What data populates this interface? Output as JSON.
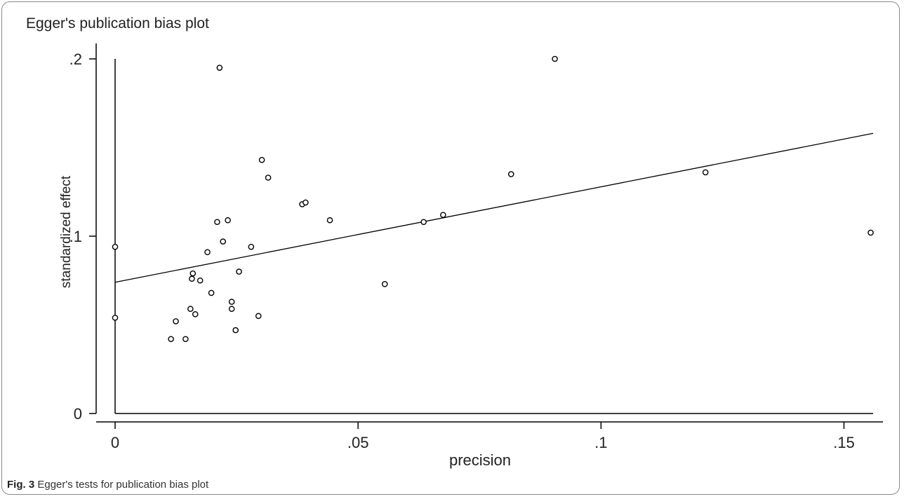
{
  "caption": {
    "label": "Fig. 3",
    "text": "Egger's tests for publication bias plot"
  },
  "chart_data": {
    "type": "scatter",
    "title": "Egger's publication bias plot",
    "xlabel": "precision",
    "ylabel": "standardized effect",
    "xlim": [
      0,
      0.156
    ],
    "ylim": [
      0,
      0.2
    ],
    "x_ticks": [
      0,
      0.05,
      0.1,
      0.15
    ],
    "x_tick_labels": [
      "0",
      ".05",
      ".1",
      ".15"
    ],
    "y_ticks": [
      0,
      0.1,
      0.2
    ],
    "y_tick_labels": [
      "0",
      ".1",
      ".2"
    ],
    "grid": false,
    "legend": "none",
    "series": [
      {
        "marker": "circle",
        "points": [
          [
            0,
            0.094
          ],
          [
            0,
            0.054
          ],
          [
            0.0115,
            0.042
          ],
          [
            0.0125,
            0.052
          ],
          [
            0.0145,
            0.042
          ],
          [
            0.0155,
            0.059
          ],
          [
            0.0158,
            0.076
          ],
          [
            0.016,
            0.079
          ],
          [
            0.0165,
            0.056
          ],
          [
            0.0175,
            0.075
          ],
          [
            0.019,
            0.091
          ],
          [
            0.0198,
            0.068
          ],
          [
            0.021,
            0.108
          ],
          [
            0.0215,
            0.195
          ],
          [
            0.0222,
            0.097
          ],
          [
            0.0232,
            0.109
          ],
          [
            0.024,
            0.063
          ],
          [
            0.024,
            0.059
          ],
          [
            0.0248,
            0.047
          ],
          [
            0.0255,
            0.08
          ],
          [
            0.028,
            0.094
          ],
          [
            0.0295,
            0.055
          ],
          [
            0.0302,
            0.143
          ],
          [
            0.0315,
            0.133
          ],
          [
            0.0385,
            0.118
          ],
          [
            0.0392,
            0.119
          ],
          [
            0.0442,
            0.109
          ],
          [
            0.0555,
            0.073
          ],
          [
            0.0635,
            0.108
          ],
          [
            0.0675,
            0.112
          ],
          [
            0.0815,
            0.135
          ],
          [
            0.0905,
            0.2
          ],
          [
            0.1215,
            0.136
          ],
          [
            0.1555,
            0.102
          ]
        ]
      }
    ],
    "fit_line": {
      "x": [
        0,
        0.156
      ],
      "y": [
        0.074,
        0.158
      ]
    }
  }
}
